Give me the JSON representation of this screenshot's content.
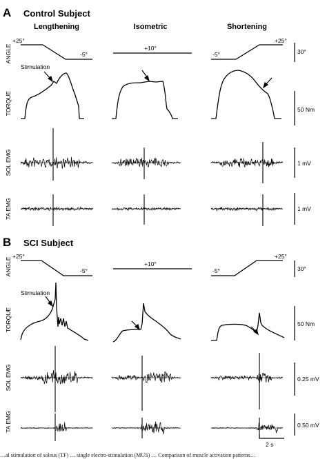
{
  "panels": [
    {
      "letter": "A",
      "subject": "Control Subject",
      "columns": [
        "Lengthening",
        "Isometric",
        "Shortening"
      ],
      "stimulation_label": "Stimulation",
      "angle_labels": {
        "lengthening": [
          "+25°",
          "-5°"
        ],
        "isometric": [
          "+10°"
        ],
        "shortening": [
          "-5°",
          "+25°"
        ]
      },
      "rows": [
        "ANGLE",
        "TORQUE",
        "SOL EMG",
        "TA EMG"
      ],
      "scales": [
        "30°",
        "50 Nm",
        "1 mV",
        "1 mV"
      ]
    },
    {
      "letter": "B",
      "subject": "SCI Subject",
      "stimulation_label": "Stimulation",
      "angle_labels": {
        "lengthening": [
          "+25°",
          "-5°"
        ],
        "isometric": [
          "+10°"
        ],
        "shortening": [
          "-5°",
          "+25°"
        ]
      },
      "rows": [
        "ANGLE",
        "TORQUE",
        "SOL EMG",
        "TA EMG"
      ],
      "scales": [
        "30°",
        "50 Nm",
        "0.25 mV",
        "0.50 mV"
      ]
    }
  ],
  "time_scale": "2 s",
  "caption": "…al stimulation of soleus (TF) … single electro-stimulation (MUS) … Comparison of muscle activation patterns…"
}
